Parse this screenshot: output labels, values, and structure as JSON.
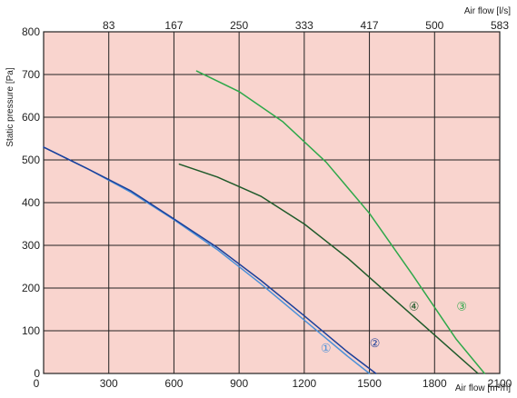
{
  "chart_data": {
    "type": "line",
    "xlabel": "Air flow [m³/h]",
    "x2label": "Air flow [l/s]",
    "ylabel": "Static pressure [Pa]",
    "xlim": [
      0,
      2100
    ],
    "ylim": [
      0,
      800
    ],
    "x_ticks": [
      0,
      300,
      600,
      900,
      1200,
      1500,
      1800,
      2100
    ],
    "y_ticks": [
      0,
      100,
      200,
      300,
      400,
      500,
      600,
      700,
      800
    ],
    "x2_ticks": [
      {
        "at": 300,
        "label": "83"
      },
      {
        "at": 600,
        "label": "167"
      },
      {
        "at": 900,
        "label": "250"
      },
      {
        "at": 1200,
        "label": "333"
      },
      {
        "at": 1500,
        "label": "417"
      },
      {
        "at": 1800,
        "label": "500"
      },
      {
        "at": 2100,
        "label": "583"
      }
    ],
    "grid": true,
    "colors": {
      "background": "#f9d4ce",
      "grid": "#222222"
    },
    "series": [
      {
        "label": "①",
        "color": "#4a90d9",
        "label_at": [
          1300,
          50
        ],
        "x": [
          0,
          200,
          400,
          600,
          800,
          1000,
          1200,
          1400,
          1500
        ],
        "y": [
          530,
          480,
          425,
          360,
          290,
          210,
          125,
          40,
          0
        ]
      },
      {
        "label": "②",
        "color": "#1c3f9a",
        "label_at": [
          1525,
          62
        ],
        "x": [
          0,
          200,
          400,
          600,
          800,
          1000,
          1200,
          1400,
          1530
        ],
        "y": [
          530,
          480,
          428,
          362,
          295,
          218,
          135,
          50,
          0
        ]
      },
      {
        "label": "④",
        "color": "#1f5a2a",
        "label_at": [
          1705,
          148
        ],
        "x": [
          625,
          800,
          1000,
          1200,
          1400,
          1600,
          1800,
          2000
        ],
        "y": [
          490,
          460,
          415,
          350,
          270,
          180,
          90,
          0
        ]
      },
      {
        "label": "③",
        "color": "#2ea84a",
        "label_at": [
          1925,
          148
        ],
        "x": [
          705,
          900,
          1100,
          1300,
          1500,
          1700,
          1900,
          2030
        ],
        "y": [
          708,
          660,
          590,
          495,
          375,
          230,
          80,
          0
        ]
      }
    ]
  }
}
